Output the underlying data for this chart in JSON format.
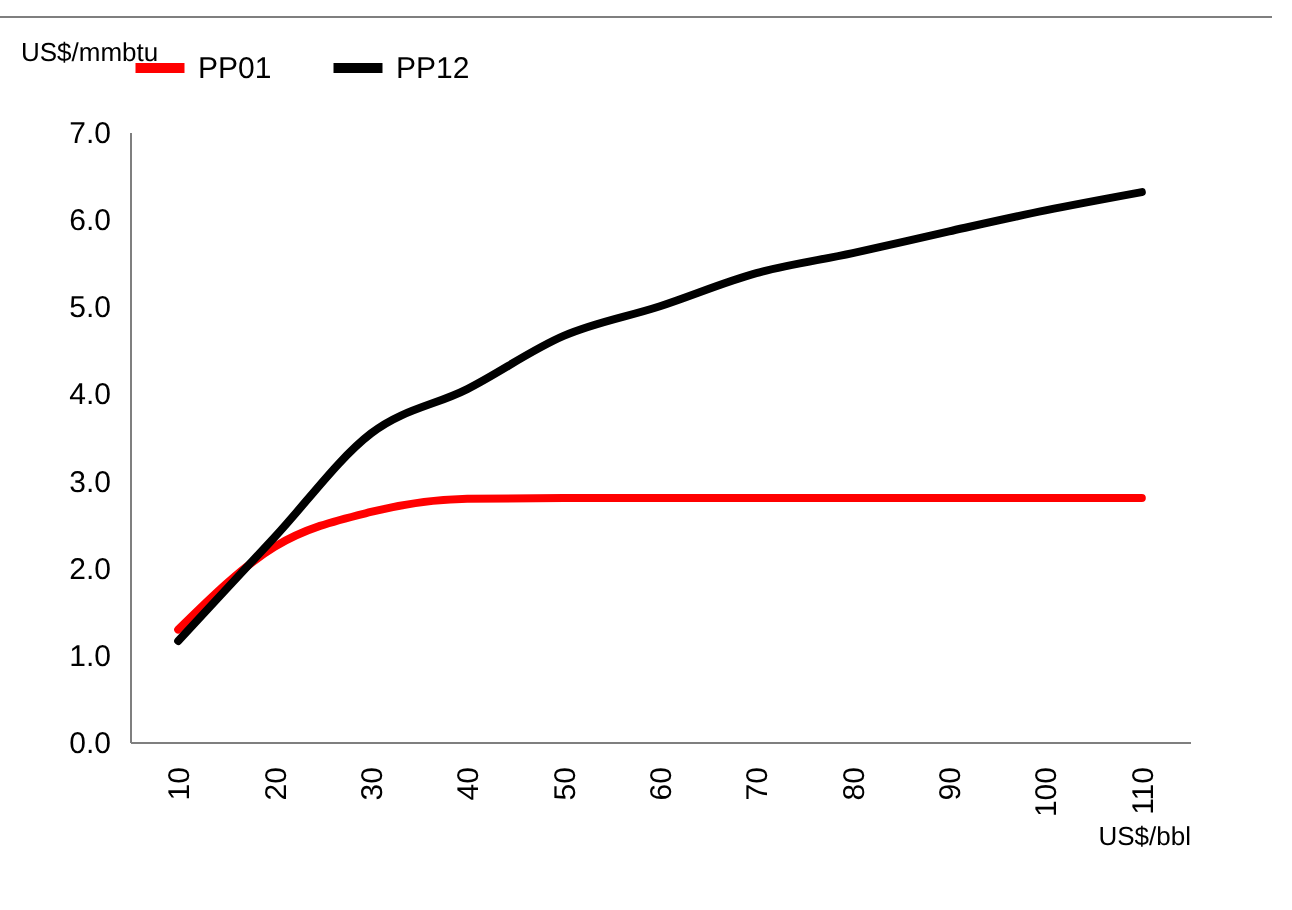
{
  "chart_data": {
    "type": "line",
    "xlabel": "US$/bbl",
    "ylabel": "US$/mmbtu",
    "categories": [
      "10",
      "20",
      "30",
      "40",
      "50",
      "60",
      "70",
      "80",
      "90",
      "100",
      "110"
    ],
    "series": [
      {
        "name": "PP01",
        "color": "#ff0000",
        "values": [
          1.29,
          2.24,
          2.64,
          2.79,
          2.8,
          2.8,
          2.8,
          2.8,
          2.8,
          2.8,
          2.8
        ]
      },
      {
        "name": "PP12",
        "color": "#000000",
        "values": [
          1.16,
          2.35,
          3.54,
          4.05,
          4.66,
          5.0,
          5.38,
          5.61,
          5.86,
          6.1,
          6.31
        ]
      }
    ],
    "ylim": [
      0,
      7
    ],
    "yticks": [
      {
        "value": 0,
        "label": "0.0"
      },
      {
        "value": 1,
        "label": "1.0"
      },
      {
        "value": 2,
        "label": "2.0"
      },
      {
        "value": 3,
        "label": "3.0"
      },
      {
        "value": 4,
        "label": "4.0"
      },
      {
        "value": 5,
        "label": "5.0"
      },
      {
        "value": 6,
        "label": "6.0"
      },
      {
        "value": 7,
        "label": "7.0"
      }
    ],
    "grid": false,
    "legend": "top",
    "marker": "none",
    "line_style": "solid"
  }
}
